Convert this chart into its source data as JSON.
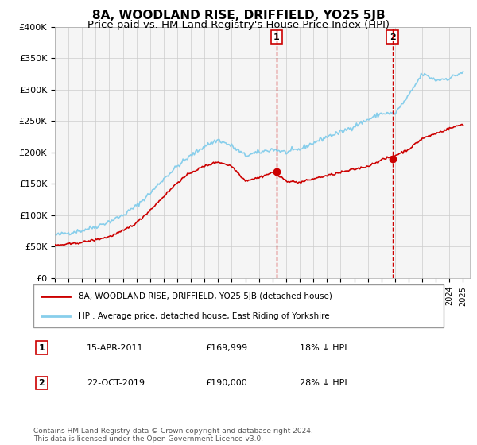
{
  "title": "8A, WOODLAND RISE, DRIFFIELD, YO25 5JB",
  "subtitle": "Price paid vs. HM Land Registry's House Price Index (HPI)",
  "title_fontsize": 11,
  "subtitle_fontsize": 9.5,
  "xlim_start": 1995.0,
  "xlim_end": 2025.5,
  "ylim_min": 0,
  "ylim_max": 400000,
  "yticks": [
    0,
    50000,
    100000,
    150000,
    200000,
    250000,
    300000,
    350000,
    400000
  ],
  "ytick_labels": [
    "£0",
    "£50K",
    "£100K",
    "£150K",
    "£200K",
    "£250K",
    "£300K",
    "£350K",
    "£400K"
  ],
  "background_color": "#f5f5f5",
  "grid_color": "#cccccc",
  "hpi_color": "#87CEEB",
  "price_color": "#cc0000",
  "vline_color": "#cc0000",
  "transaction1_x": 2011.29,
  "transaction1_y": 169999,
  "transaction1_label": "1",
  "transaction2_x": 2019.81,
  "transaction2_y": 190000,
  "transaction2_label": "2",
  "legend_line1": "8A, WOODLAND RISE, DRIFFIELD, YO25 5JB (detached house)",
  "legend_line2": "HPI: Average price, detached house, East Riding of Yorkshire",
  "annot1_date": "15-APR-2011",
  "annot1_price": "£169,999",
  "annot1_hpi": "18% ↓ HPI",
  "annot2_date": "22-OCT-2019",
  "annot2_price": "£190,000",
  "annot2_hpi": "28% ↓ HPI",
  "footer": "Contains HM Land Registry data © Crown copyright and database right 2024.\nThis data is licensed under the Open Government Licence v3.0.",
  "hpi_anchors_x": [
    1995,
    1996,
    1997,
    1998,
    1999,
    2000,
    2001,
    2002,
    2003,
    2004,
    2005,
    2006,
    2007,
    2008,
    2009,
    2010,
    2011,
    2012,
    2013,
    2014,
    2015,
    2016,
    2017,
    2018,
    2019,
    2020,
    2021,
    2022,
    2023,
    2024,
    2025
  ],
  "hpi_anchors_y": [
    68000,
    72000,
    76000,
    82000,
    90000,
    100000,
    115000,
    135000,
    158000,
    178000,
    195000,
    210000,
    220000,
    210000,
    195000,
    200000,
    205000,
    200000,
    205000,
    215000,
    225000,
    232000,
    242000,
    252000,
    262000,
    262000,
    290000,
    325000,
    315000,
    318000,
    328000
  ],
  "price_anchors_x": [
    1995,
    1996,
    1997,
    1998,
    1999,
    2000,
    2001,
    2002,
    2003,
    2004,
    2005,
    2006,
    2007,
    2008,
    2009,
    2010,
    2011,
    2012,
    2013,
    2014,
    2015,
    2016,
    2017,
    2018,
    2019,
    2020,
    2021,
    2022,
    2023,
    2024,
    2025
  ],
  "price_anchors_y": [
    52000,
    54000,
    57000,
    61000,
    66000,
    75000,
    88000,
    108000,
    130000,
    152000,
    168000,
    178000,
    185000,
    178000,
    155000,
    160000,
    168000,
    155000,
    152000,
    158000,
    163000,
    168000,
    173000,
    178000,
    188000,
    195000,
    205000,
    222000,
    230000,
    238000,
    245000
  ]
}
